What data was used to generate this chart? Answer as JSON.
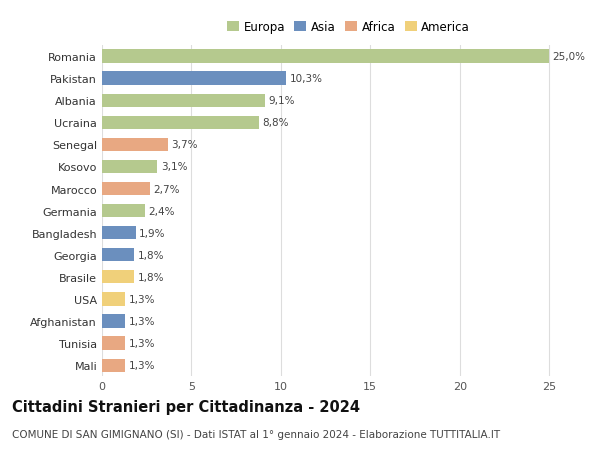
{
  "countries": [
    "Romania",
    "Pakistan",
    "Albania",
    "Ucraina",
    "Senegal",
    "Kosovo",
    "Marocco",
    "Germania",
    "Bangladesh",
    "Georgia",
    "Brasile",
    "USA",
    "Afghanistan",
    "Tunisia",
    "Mali"
  ],
  "values": [
    25.0,
    10.3,
    9.1,
    8.8,
    3.7,
    3.1,
    2.7,
    2.4,
    1.9,
    1.8,
    1.8,
    1.3,
    1.3,
    1.3,
    1.3
  ],
  "labels": [
    "25,0%",
    "10,3%",
    "9,1%",
    "8,8%",
    "3,7%",
    "3,1%",
    "2,7%",
    "2,4%",
    "1,9%",
    "1,8%",
    "1,8%",
    "1,3%",
    "1,3%",
    "1,3%",
    "1,3%"
  ],
  "continents": [
    "Europa",
    "Asia",
    "Europa",
    "Europa",
    "Africa",
    "Europa",
    "Africa",
    "Europa",
    "Asia",
    "Asia",
    "America",
    "America",
    "Asia",
    "Africa",
    "Africa"
  ],
  "colors": {
    "Europa": "#b5c98e",
    "Asia": "#6b8fbe",
    "Africa": "#e8a882",
    "America": "#f0d07a"
  },
  "legend_order": [
    "Europa",
    "Asia",
    "Africa",
    "America"
  ],
  "title": "Cittadini Stranieri per Cittadinanza - 2024",
  "subtitle": "COMUNE DI SAN GIMIGNANO (SI) - Dati ISTAT al 1° gennaio 2024 - Elaborazione TUTTITALIA.IT",
  "xlim": [
    0,
    26.5
  ],
  "xticks": [
    0,
    5,
    10,
    15,
    20,
    25
  ],
  "background_color": "#ffffff",
  "grid_color": "#dddddd",
  "bar_height": 0.6,
  "title_fontsize": 10.5,
  "subtitle_fontsize": 7.5,
  "label_fontsize": 7.5,
  "tick_fontsize": 8,
  "legend_fontsize": 8.5
}
